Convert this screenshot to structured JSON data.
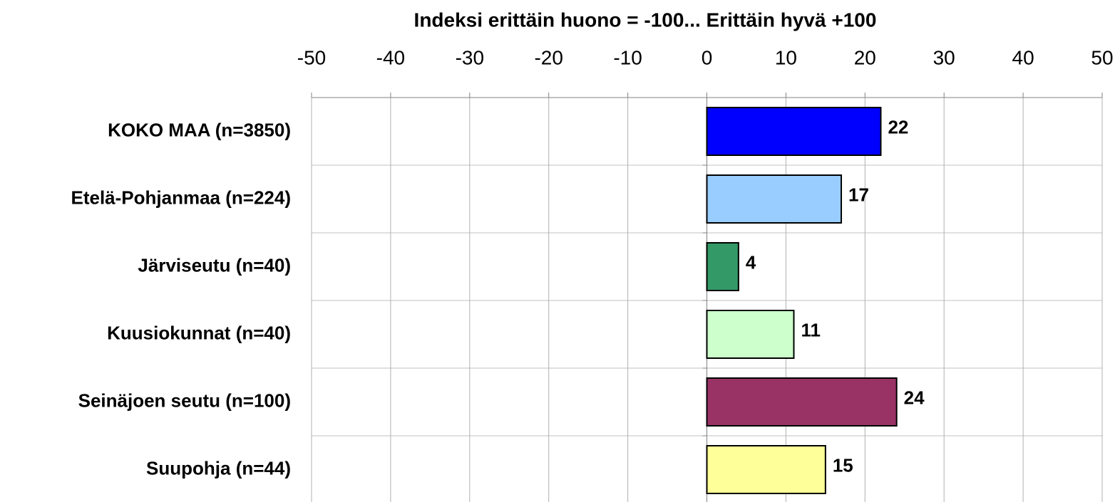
{
  "chart_data": {
    "type": "bar",
    "orientation": "horizontal",
    "title": "Indeksi erittäin huono = -100... Erittäin hyvä +100",
    "categories": [
      "KOKO MAA (n=3850)",
      "Etelä-Pohjanmaa (n=224)",
      "Järviseutu (n=40)",
      "Kuusiokunnat (n=40)",
      "Seinäjoen seutu (n=100)",
      "Suupohja (n=44)"
    ],
    "values": [
      22,
      17,
      4,
      11,
      24,
      15
    ],
    "colors": [
      "#0000ff",
      "#99ccff",
      "#339966",
      "#ccffcc",
      "#993366",
      "#ffff99"
    ],
    "xlim": [
      -50,
      50
    ],
    "xticks": [
      -50,
      -40,
      -30,
      -20,
      -10,
      0,
      10,
      20,
      30,
      40,
      50
    ],
    "axis_position": "top",
    "grid": true
  }
}
